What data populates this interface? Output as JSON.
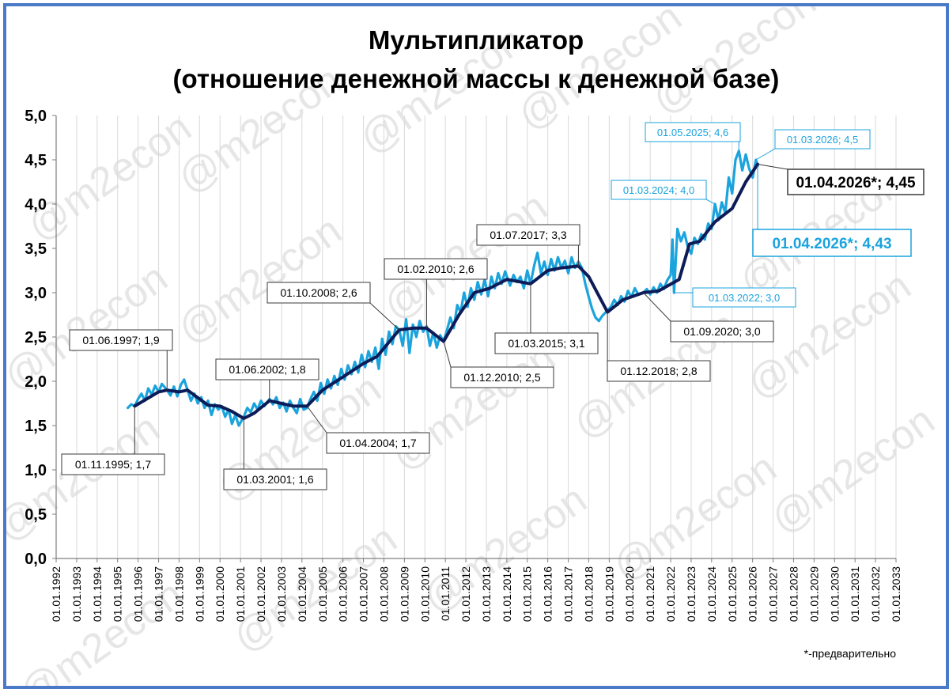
{
  "chart_data": {
    "type": "line",
    "title": "Мультипликатор",
    "subtitle": "(отношение денежной массы к денежной базе)",
    "footnote": "*-предварительно",
    "watermark": "@m2econ",
    "xlabel": "",
    "ylabel": "",
    "x_range": [
      "01.01.1992",
      "01.01.2033"
    ],
    "ylim": [
      0,
      5
    ],
    "yticks": [
      "0,0",
      "0,5",
      "1,0",
      "1,5",
      "2,0",
      "2,5",
      "3,0",
      "3,5",
      "4,0",
      "4,5",
      "5,0"
    ],
    "xticks": [
      "01.01.1992",
      "01.01.1993",
      "01.01.1994",
      "01.01.1995",
      "01.01.1996",
      "01.01.1997",
      "01.01.1998",
      "01.01.1999",
      "01.01.2000",
      "01.01.2001",
      "01.01.2002",
      "01.01.2003",
      "01.01.2004",
      "01.01.2005",
      "01.01.2006",
      "01.01.2007",
      "01.01.2008",
      "01.01.2009",
      "01.01.2010",
      "01.01.2011",
      "01.01.2012",
      "01.01.2013",
      "01.01.2014",
      "01.01.2015",
      "01.01.2016",
      "01.01.2017",
      "01.01.2018",
      "01.01.2019",
      "01.01.2020",
      "01.01.2021",
      "01.01.2022",
      "01.01.2023",
      "01.01.2024",
      "01.01.2025",
      "01.01.2026",
      "01.01.2027",
      "01.01.2028",
      "01.01.2029",
      "01.01.2030",
      "01.01.2031",
      "01.01.2032",
      "01.01.2033"
    ],
    "grid": "vertical",
    "colors": {
      "monthly": "#1aa3dd",
      "smoothed": "#0d1b57",
      "axis_frame": "#4a79c7"
    },
    "series": [
      {
        "key": "monthly",
        "points": [
          [
            "1995-07-01",
            1.7
          ],
          [
            "1995-09-01",
            1.74
          ],
          [
            "1995-11-01",
            1.72
          ],
          [
            "1996-01-01",
            1.8
          ],
          [
            "1996-03-01",
            1.86
          ],
          [
            "1996-05-01",
            1.78
          ],
          [
            "1996-07-01",
            1.92
          ],
          [
            "1996-09-01",
            1.85
          ],
          [
            "1996-11-01",
            1.95
          ],
          [
            "1997-01-01",
            1.88
          ],
          [
            "1997-03-01",
            1.97
          ],
          [
            "1997-06-01",
            1.9
          ],
          [
            "1997-08-01",
            1.84
          ],
          [
            "1997-10-01",
            1.94
          ],
          [
            "1997-12-01",
            1.83
          ],
          [
            "1998-02-01",
            1.96
          ],
          [
            "1998-04-01",
            2.02
          ],
          [
            "1998-06-01",
            1.9
          ],
          [
            "1998-08-01",
            1.78
          ],
          [
            "1998-10-01",
            1.86
          ],
          [
            "1998-12-01",
            1.75
          ],
          [
            "1999-02-01",
            1.82
          ],
          [
            "1999-04-01",
            1.7
          ],
          [
            "1999-06-01",
            1.78
          ],
          [
            "1999-08-01",
            1.62
          ],
          [
            "1999-10-01",
            1.74
          ],
          [
            "1999-12-01",
            1.68
          ],
          [
            "2000-02-01",
            1.72
          ],
          [
            "2000-04-01",
            1.6
          ],
          [
            "2000-06-01",
            1.68
          ],
          [
            "2000-08-01",
            1.52
          ],
          [
            "2000-10-01",
            1.62
          ],
          [
            "2000-12-01",
            1.5
          ],
          [
            "2001-03-01",
            1.6
          ],
          [
            "2001-05-01",
            1.7
          ],
          [
            "2001-07-01",
            1.65
          ],
          [
            "2001-09-01",
            1.75
          ],
          [
            "2001-11-01",
            1.68
          ],
          [
            "2002-01-01",
            1.78
          ],
          [
            "2002-03-01",
            1.72
          ],
          [
            "2002-06-01",
            1.8
          ],
          [
            "2002-08-01",
            1.74
          ],
          [
            "2002-10-01",
            1.82
          ],
          [
            "2002-12-01",
            1.7
          ],
          [
            "2003-02-01",
            1.76
          ],
          [
            "2003-04-01",
            1.66
          ],
          [
            "2003-06-01",
            1.78
          ],
          [
            "2003-08-01",
            1.7
          ],
          [
            "2003-10-01",
            1.64
          ],
          [
            "2003-12-01",
            1.8
          ],
          [
            "2004-02-01",
            1.68
          ],
          [
            "2004-04-01",
            1.7
          ],
          [
            "2004-06-01",
            1.8
          ],
          [
            "2004-08-01",
            1.88
          ],
          [
            "2004-10-01",
            1.78
          ],
          [
            "2004-12-01",
            1.98
          ],
          [
            "2005-02-01",
            1.86
          ],
          [
            "2005-04-01",
            2.02
          ],
          [
            "2005-06-01",
            1.92
          ],
          [
            "2005-08-01",
            2.06
          ],
          [
            "2005-10-01",
            1.96
          ],
          [
            "2005-12-01",
            2.14
          ],
          [
            "2006-02-01",
            2.02
          ],
          [
            "2006-04-01",
            2.18
          ],
          [
            "2006-06-01",
            2.08
          ],
          [
            "2006-08-01",
            2.22
          ],
          [
            "2006-10-01",
            2.1
          ],
          [
            "2006-12-01",
            2.3
          ],
          [
            "2007-02-01",
            2.16
          ],
          [
            "2007-04-01",
            2.34
          ],
          [
            "2007-06-01",
            2.22
          ],
          [
            "2007-08-01",
            2.38
          ],
          [
            "2007-10-01",
            2.14
          ],
          [
            "2007-12-01",
            2.48
          ],
          [
            "2008-02-01",
            2.3
          ],
          [
            "2008-04-01",
            2.56
          ],
          [
            "2008-06-01",
            2.42
          ],
          [
            "2008-08-01",
            2.62
          ],
          [
            "2008-10-01",
            2.58
          ],
          [
            "2008-12-01",
            2.4
          ],
          [
            "2009-02-01",
            2.7
          ],
          [
            "2009-04-01",
            2.32
          ],
          [
            "2009-06-01",
            2.64
          ],
          [
            "2009-08-01",
            2.5
          ],
          [
            "2009-10-01",
            2.68
          ],
          [
            "2009-12-01",
            2.56
          ],
          [
            "2010-02-01",
            2.62
          ],
          [
            "2010-04-01",
            2.4
          ],
          [
            "2010-06-01",
            2.55
          ],
          [
            "2010-08-01",
            2.38
          ],
          [
            "2010-10-01",
            2.52
          ],
          [
            "2010-12-01",
            2.45
          ],
          [
            "2011-02-01",
            2.58
          ],
          [
            "2011-04-01",
            2.72
          ],
          [
            "2011-06-01",
            2.6
          ],
          [
            "2011-08-01",
            2.86
          ],
          [
            "2011-10-01",
            2.78
          ],
          [
            "2011-12-01",
            3.0
          ],
          [
            "2012-02-01",
            2.84
          ],
          [
            "2012-04-01",
            3.05
          ],
          [
            "2012-06-01",
            2.92
          ],
          [
            "2012-08-01",
            3.12
          ],
          [
            "2012-10-01",
            2.98
          ],
          [
            "2012-12-01",
            3.15
          ],
          [
            "2013-02-01",
            2.96
          ],
          [
            "2013-04-01",
            3.18
          ],
          [
            "2013-06-01",
            3.05
          ],
          [
            "2013-08-01",
            3.22
          ],
          [
            "2013-10-01",
            3.1
          ],
          [
            "2013-12-01",
            3.24
          ],
          [
            "2014-03-01",
            3.08
          ],
          [
            "2014-05-01",
            3.2
          ],
          [
            "2014-07-01",
            3.12
          ],
          [
            "2014-09-01",
            3.18
          ],
          [
            "2014-11-01",
            3.05
          ],
          [
            "2015-01-01",
            3.25
          ],
          [
            "2015-03-01",
            3.1
          ],
          [
            "2015-05-01",
            3.3
          ],
          [
            "2015-07-01",
            3.45
          ],
          [
            "2015-09-01",
            3.22
          ],
          [
            "2015-11-01",
            3.35
          ],
          [
            "2016-01-01",
            3.2
          ],
          [
            "2016-03-01",
            3.38
          ],
          [
            "2016-05-01",
            3.25
          ],
          [
            "2016-07-01",
            3.4
          ],
          [
            "2016-09-01",
            3.28
          ],
          [
            "2016-11-01",
            3.36
          ],
          [
            "2017-01-01",
            3.22
          ],
          [
            "2017-03-01",
            3.4
          ],
          [
            "2017-05-01",
            3.28
          ],
          [
            "2017-07-01",
            3.35
          ],
          [
            "2017-09-01",
            3.28
          ],
          [
            "2017-11-01",
            3.1
          ],
          [
            "2018-01-01",
            2.95
          ],
          [
            "2018-03-01",
            2.82
          ],
          [
            "2018-05-01",
            2.72
          ],
          [
            "2018-07-01",
            2.68
          ],
          [
            "2018-09-01",
            2.74
          ],
          [
            "2018-12-01",
            2.8
          ],
          [
            "2019-02-01",
            2.84
          ],
          [
            "2019-04-01",
            2.92
          ],
          [
            "2019-06-01",
            2.86
          ],
          [
            "2019-08-01",
            2.96
          ],
          [
            "2019-10-01",
            2.9
          ],
          [
            "2019-12-01",
            3.02
          ],
          [
            "2020-02-01",
            2.95
          ],
          [
            "2020-04-01",
            3.05
          ],
          [
            "2020-06-01",
            2.98
          ],
          [
            "2020-09-01",
            3.0
          ],
          [
            "2020-11-01",
            3.04
          ],
          [
            "2021-01-01",
            2.98
          ],
          [
            "2021-03-01",
            3.06
          ],
          [
            "2021-05-01",
            3.0
          ],
          [
            "2021-07-01",
            3.1
          ],
          [
            "2021-09-01",
            3.04
          ],
          [
            "2021-11-01",
            3.14
          ],
          [
            "2022-01-01",
            3.2
          ],
          [
            "2022-02-01",
            3.6
          ],
          [
            "2022-03-01",
            3.0
          ],
          [
            "2022-05-01",
            3.72
          ],
          [
            "2022-07-01",
            3.58
          ],
          [
            "2022-09-01",
            3.68
          ],
          [
            "2022-11-01",
            3.52
          ],
          [
            "2023-01-01",
            3.44
          ],
          [
            "2023-03-01",
            3.62
          ],
          [
            "2023-05-01",
            3.55
          ],
          [
            "2023-07-01",
            3.66
          ],
          [
            "2023-09-01",
            3.6
          ],
          [
            "2023-11-01",
            3.78
          ],
          [
            "2024-01-01",
            3.72
          ],
          [
            "2024-03-01",
            4.0
          ],
          [
            "2024-05-01",
            3.82
          ],
          [
            "2024-07-01",
            4.02
          ],
          [
            "2024-09-01",
            3.9
          ],
          [
            "2024-11-01",
            4.3
          ],
          [
            "2025-01-01",
            4.12
          ],
          [
            "2025-03-01",
            4.5
          ],
          [
            "2025-05-01",
            4.6
          ],
          [
            "2025-07-01",
            4.38
          ],
          [
            "2025-09-01",
            4.56
          ],
          [
            "2025-11-01",
            4.4
          ],
          [
            "2026-01-01",
            4.3
          ],
          [
            "2026-03-01",
            4.5
          ],
          [
            "2026-04-01",
            4.43
          ]
        ]
      },
      {
        "key": "smoothed",
        "points": [
          [
            "1995-11-01",
            1.72
          ],
          [
            "1996-06-01",
            1.8
          ],
          [
            "1997-01-01",
            1.88
          ],
          [
            "1997-06-01",
            1.9
          ],
          [
            "1998-01-01",
            1.88
          ],
          [
            "1998-06-01",
            1.9
          ],
          [
            "1999-01-01",
            1.8
          ],
          [
            "1999-06-01",
            1.73
          ],
          [
            "2000-01-01",
            1.72
          ],
          [
            "2000-08-01",
            1.66
          ],
          [
            "2001-03-01",
            1.58
          ],
          [
            "2001-09-01",
            1.64
          ],
          [
            "2002-06-01",
            1.78
          ],
          [
            "2003-01-01",
            1.75
          ],
          [
            "2003-08-01",
            1.72
          ],
          [
            "2004-04-01",
            1.72
          ],
          [
            "2005-01-01",
            1.9
          ],
          [
            "2006-01-01",
            2.05
          ],
          [
            "2007-01-01",
            2.2
          ],
          [
            "2007-09-01",
            2.28
          ],
          [
            "2008-10-01",
            2.58
          ],
          [
            "2009-06-01",
            2.6
          ],
          [
            "2010-02-01",
            2.6
          ],
          [
            "2010-12-01",
            2.45
          ],
          [
            "2011-09-01",
            2.75
          ],
          [
            "2012-06-01",
            3.0
          ],
          [
            "2013-03-01",
            3.05
          ],
          [
            "2014-01-01",
            3.15
          ],
          [
            "2015-03-01",
            3.1
          ],
          [
            "2016-01-01",
            3.25
          ],
          [
            "2016-09-01",
            3.28
          ],
          [
            "2017-07-01",
            3.3
          ],
          [
            "2018-01-01",
            3.18
          ],
          [
            "2018-12-01",
            2.78
          ],
          [
            "2019-09-01",
            2.92
          ],
          [
            "2020-09-01",
            3.0
          ],
          [
            "2021-06-01",
            3.02
          ],
          [
            "2022-06-01",
            3.15
          ],
          [
            "2022-12-01",
            3.55
          ],
          [
            "2023-06-01",
            3.58
          ],
          [
            "2024-03-01",
            3.8
          ],
          [
            "2025-01-01",
            3.95
          ],
          [
            "2025-09-01",
            4.25
          ],
          [
            "2026-04-01",
            4.45
          ]
        ]
      }
    ],
    "annotations": [
      {
        "text": "01.11.1995; 1,7",
        "x": "1995-11-01",
        "y": 1.72,
        "style": "dark"
      },
      {
        "text": "01.06.1997; 1,9",
        "x": "1997-06-01",
        "y": 1.9,
        "style": "dark"
      },
      {
        "text": "01.03.2001; 1,6",
        "x": "2001-03-01",
        "y": 1.58,
        "style": "dark"
      },
      {
        "text": "01.06.2002; 1,8",
        "x": "2002-06-01",
        "y": 1.78,
        "style": "dark"
      },
      {
        "text": "01.04.2004; 1,7",
        "x": "2004-04-01",
        "y": 1.72,
        "style": "dark"
      },
      {
        "text": "01.10.2008; 2,6",
        "x": "2008-10-01",
        "y": 2.58,
        "style": "dark"
      },
      {
        "text": "01.02.2010; 2,6",
        "x": "2010-02-01",
        "y": 2.6,
        "style": "dark"
      },
      {
        "text": "01.12.2010; 2,5",
        "x": "2010-12-01",
        "y": 2.45,
        "style": "dark"
      },
      {
        "text": "01.03.2015; 3,1",
        "x": "2015-03-01",
        "y": 3.1,
        "style": "dark"
      },
      {
        "text": "01.07.2017; 3,3",
        "x": "2017-07-01",
        "y": 3.3,
        "style": "dark"
      },
      {
        "text": "01.12.2018; 2,8",
        "x": "2018-12-01",
        "y": 2.78,
        "style": "dark"
      },
      {
        "text": "01.09.2020; 3,0",
        "x": "2020-09-01",
        "y": 3.0,
        "style": "dark"
      },
      {
        "text": "01.03.2022; 3,0",
        "x": "2022-03-01",
        "y": 3.0,
        "style": "light"
      },
      {
        "text": "01.03.2024; 4,0",
        "x": "2024-03-01",
        "y": 4.0,
        "style": "light"
      },
      {
        "text": "01.05.2025; 4,6",
        "x": "2025-05-01",
        "y": 4.6,
        "style": "light"
      },
      {
        "text": "01.03.2026; 4,5",
        "x": "2026-03-01",
        "y": 4.5,
        "style": "light"
      },
      {
        "text": "01.04.2026*; 4,45",
        "x": "2026-04-01",
        "y": 4.45,
        "style": "big-dark"
      },
      {
        "text": "01.04.2026*; 4,43",
        "x": "2026-04-01",
        "y": 4.43,
        "style": "big-light"
      }
    ]
  }
}
